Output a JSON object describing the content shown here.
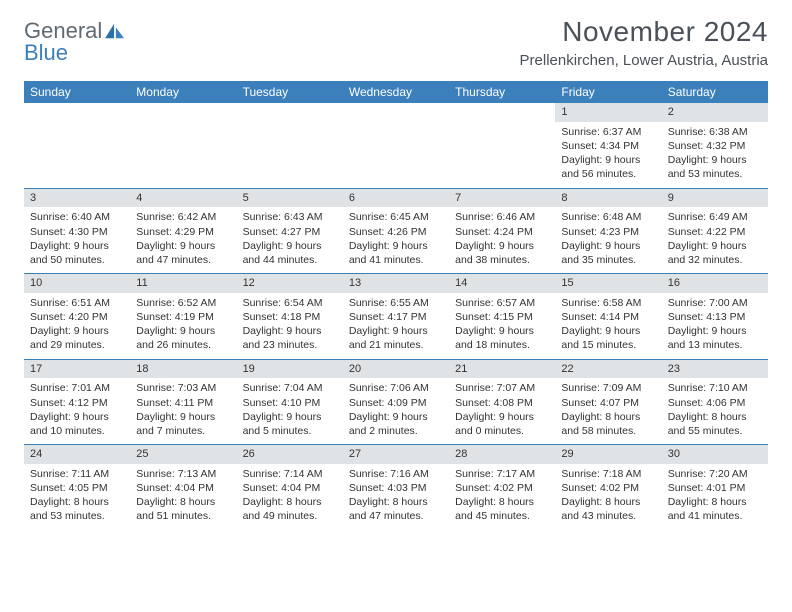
{
  "logo": {
    "text1": "General",
    "text2": "Blue"
  },
  "title": "November 2024",
  "location": "Prellenkirchen, Lower Austria, Austria",
  "colors": {
    "header_bg": "#3b7fbb",
    "header_text": "#ffffff",
    "daybar_bg": "#e0e3e6",
    "divider": "#3b7fbb",
    "page_bg": "#ffffff",
    "body_text": "#333333",
    "title_text": "#4a5159",
    "logo_gray": "#5f6a72",
    "logo_blue": "#3b7fbb"
  },
  "weekdays": [
    "Sunday",
    "Monday",
    "Tuesday",
    "Wednesday",
    "Thursday",
    "Friday",
    "Saturday"
  ],
  "weeks": [
    [
      {
        "empty": true
      },
      {
        "empty": true
      },
      {
        "empty": true
      },
      {
        "empty": true
      },
      {
        "empty": true
      },
      {
        "day": "1",
        "sunrise": "Sunrise: 6:37 AM",
        "sunset": "Sunset: 4:34 PM",
        "daylight": "Daylight: 9 hours and 56 minutes."
      },
      {
        "day": "2",
        "sunrise": "Sunrise: 6:38 AM",
        "sunset": "Sunset: 4:32 PM",
        "daylight": "Daylight: 9 hours and 53 minutes."
      }
    ],
    [
      {
        "day": "3",
        "sunrise": "Sunrise: 6:40 AM",
        "sunset": "Sunset: 4:30 PM",
        "daylight": "Daylight: 9 hours and 50 minutes."
      },
      {
        "day": "4",
        "sunrise": "Sunrise: 6:42 AM",
        "sunset": "Sunset: 4:29 PM",
        "daylight": "Daylight: 9 hours and 47 minutes."
      },
      {
        "day": "5",
        "sunrise": "Sunrise: 6:43 AM",
        "sunset": "Sunset: 4:27 PM",
        "daylight": "Daylight: 9 hours and 44 minutes."
      },
      {
        "day": "6",
        "sunrise": "Sunrise: 6:45 AM",
        "sunset": "Sunset: 4:26 PM",
        "daylight": "Daylight: 9 hours and 41 minutes."
      },
      {
        "day": "7",
        "sunrise": "Sunrise: 6:46 AM",
        "sunset": "Sunset: 4:24 PM",
        "daylight": "Daylight: 9 hours and 38 minutes."
      },
      {
        "day": "8",
        "sunrise": "Sunrise: 6:48 AM",
        "sunset": "Sunset: 4:23 PM",
        "daylight": "Daylight: 9 hours and 35 minutes."
      },
      {
        "day": "9",
        "sunrise": "Sunrise: 6:49 AM",
        "sunset": "Sunset: 4:22 PM",
        "daylight": "Daylight: 9 hours and 32 minutes."
      }
    ],
    [
      {
        "day": "10",
        "sunrise": "Sunrise: 6:51 AM",
        "sunset": "Sunset: 4:20 PM",
        "daylight": "Daylight: 9 hours and 29 minutes."
      },
      {
        "day": "11",
        "sunrise": "Sunrise: 6:52 AM",
        "sunset": "Sunset: 4:19 PM",
        "daylight": "Daylight: 9 hours and 26 minutes."
      },
      {
        "day": "12",
        "sunrise": "Sunrise: 6:54 AM",
        "sunset": "Sunset: 4:18 PM",
        "daylight": "Daylight: 9 hours and 23 minutes."
      },
      {
        "day": "13",
        "sunrise": "Sunrise: 6:55 AM",
        "sunset": "Sunset: 4:17 PM",
        "daylight": "Daylight: 9 hours and 21 minutes."
      },
      {
        "day": "14",
        "sunrise": "Sunrise: 6:57 AM",
        "sunset": "Sunset: 4:15 PM",
        "daylight": "Daylight: 9 hours and 18 minutes."
      },
      {
        "day": "15",
        "sunrise": "Sunrise: 6:58 AM",
        "sunset": "Sunset: 4:14 PM",
        "daylight": "Daylight: 9 hours and 15 minutes."
      },
      {
        "day": "16",
        "sunrise": "Sunrise: 7:00 AM",
        "sunset": "Sunset: 4:13 PM",
        "daylight": "Daylight: 9 hours and 13 minutes."
      }
    ],
    [
      {
        "day": "17",
        "sunrise": "Sunrise: 7:01 AM",
        "sunset": "Sunset: 4:12 PM",
        "daylight": "Daylight: 9 hours and 10 minutes."
      },
      {
        "day": "18",
        "sunrise": "Sunrise: 7:03 AM",
        "sunset": "Sunset: 4:11 PM",
        "daylight": "Daylight: 9 hours and 7 minutes."
      },
      {
        "day": "19",
        "sunrise": "Sunrise: 7:04 AM",
        "sunset": "Sunset: 4:10 PM",
        "daylight": "Daylight: 9 hours and 5 minutes."
      },
      {
        "day": "20",
        "sunrise": "Sunrise: 7:06 AM",
        "sunset": "Sunset: 4:09 PM",
        "daylight": "Daylight: 9 hours and 2 minutes."
      },
      {
        "day": "21",
        "sunrise": "Sunrise: 7:07 AM",
        "sunset": "Sunset: 4:08 PM",
        "daylight": "Daylight: 9 hours and 0 minutes."
      },
      {
        "day": "22",
        "sunrise": "Sunrise: 7:09 AM",
        "sunset": "Sunset: 4:07 PM",
        "daylight": "Daylight: 8 hours and 58 minutes."
      },
      {
        "day": "23",
        "sunrise": "Sunrise: 7:10 AM",
        "sunset": "Sunset: 4:06 PM",
        "daylight": "Daylight: 8 hours and 55 minutes."
      }
    ],
    [
      {
        "day": "24",
        "sunrise": "Sunrise: 7:11 AM",
        "sunset": "Sunset: 4:05 PM",
        "daylight": "Daylight: 8 hours and 53 minutes."
      },
      {
        "day": "25",
        "sunrise": "Sunrise: 7:13 AM",
        "sunset": "Sunset: 4:04 PM",
        "daylight": "Daylight: 8 hours and 51 minutes."
      },
      {
        "day": "26",
        "sunrise": "Sunrise: 7:14 AM",
        "sunset": "Sunset: 4:04 PM",
        "daylight": "Daylight: 8 hours and 49 minutes."
      },
      {
        "day": "27",
        "sunrise": "Sunrise: 7:16 AM",
        "sunset": "Sunset: 4:03 PM",
        "daylight": "Daylight: 8 hours and 47 minutes."
      },
      {
        "day": "28",
        "sunrise": "Sunrise: 7:17 AM",
        "sunset": "Sunset: 4:02 PM",
        "daylight": "Daylight: 8 hours and 45 minutes."
      },
      {
        "day": "29",
        "sunrise": "Sunrise: 7:18 AM",
        "sunset": "Sunset: 4:02 PM",
        "daylight": "Daylight: 8 hours and 43 minutes."
      },
      {
        "day": "30",
        "sunrise": "Sunrise: 7:20 AM",
        "sunset": "Sunset: 4:01 PM",
        "daylight": "Daylight: 8 hours and 41 minutes."
      }
    ]
  ]
}
